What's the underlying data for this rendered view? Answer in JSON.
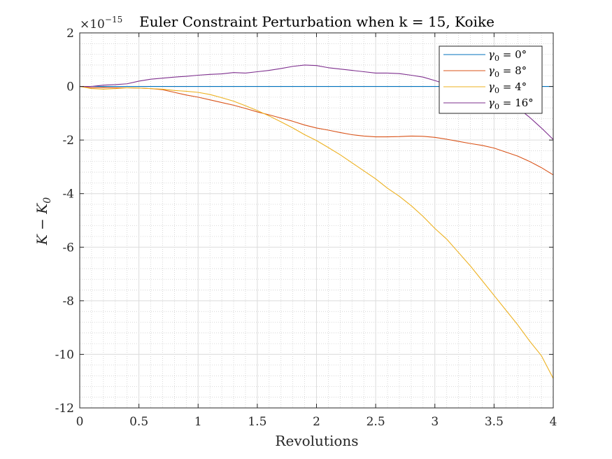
{
  "chart_data": {
    "type": "line",
    "title": "Euler Constraint Perturbation when k = 15, Koike",
    "xlabel": "Revolutions",
    "ylabel": "K − K",
    "ylabel_sub": "0",
    "exponent_base": "×10",
    "exponent_power": "−15",
    "xlim": [
      0,
      4
    ],
    "ylim": [
      -12,
      2
    ],
    "xticks": [
      0,
      0.5,
      1,
      1.5,
      2,
      2.5,
      3,
      3.5,
      4
    ],
    "yticks": [
      2,
      0,
      -2,
      -4,
      -6,
      -8,
      -10,
      -12
    ],
    "xticklabels": [
      "0",
      "0.5",
      "1",
      "1.5",
      "2",
      "2.5",
      "3",
      "3.5",
      "4"
    ],
    "yticklabels": [
      "2",
      "0",
      "-2",
      "-4",
      "-6",
      "-8",
      "-10",
      "-12"
    ],
    "grid": true,
    "minor_grid": true,
    "legend_position": "top-right",
    "series": [
      {
        "name": "γ0 = 0°",
        "label_symbol": "γ",
        "label_sub": "0",
        "label_rest": " = 0°",
        "color": "#0072BD",
        "x": [
          0,
          4
        ],
        "y": [
          0,
          0
        ]
      },
      {
        "name": "γ0 = 8°",
        "label_symbol": "γ",
        "label_sub": "0",
        "label_rest": " = 8°",
        "color": "#D95319",
        "x": [
          0,
          0.1,
          0.2,
          0.3,
          0.4,
          0.5,
          0.6,
          0.7,
          0.8,
          0.9,
          1.0,
          1.1,
          1.2,
          1.3,
          1.4,
          1.5,
          1.6,
          1.7,
          1.8,
          1.9,
          2.0,
          2.1,
          2.2,
          2.3,
          2.4,
          2.5,
          2.6,
          2.7,
          2.8,
          2.9,
          3.0,
          3.1,
          3.2,
          3.3,
          3.4,
          3.5,
          3.6,
          3.7,
          3.8,
          3.9,
          4.0
        ],
        "y": [
          0,
          -0.05,
          -0.04,
          -0.05,
          -0.05,
          -0.06,
          -0.08,
          -0.12,
          -0.22,
          -0.32,
          -0.4,
          -0.5,
          -0.6,
          -0.7,
          -0.82,
          -0.95,
          -1.06,
          -1.18,
          -1.3,
          -1.44,
          -1.55,
          -1.63,
          -1.72,
          -1.8,
          -1.85,
          -1.88,
          -1.88,
          -1.87,
          -1.85,
          -1.86,
          -1.9,
          -1.97,
          -2.05,
          -2.13,
          -2.2,
          -2.3,
          -2.45,
          -2.6,
          -2.8,
          -3.03,
          -3.3
        ]
      },
      {
        "name": "γ0 = 4°",
        "label_symbol": "γ",
        "label_sub": "0",
        "label_rest": " = 4°",
        "color": "#EDB120",
        "x": [
          0,
          0.1,
          0.2,
          0.3,
          0.4,
          0.5,
          0.6,
          0.7,
          0.8,
          0.9,
          1.0,
          1.1,
          1.2,
          1.3,
          1.4,
          1.5,
          1.6,
          1.7,
          1.8,
          1.9,
          2.0,
          2.1,
          2.2,
          2.3,
          2.4,
          2.5,
          2.6,
          2.7,
          2.8,
          2.9,
          3.0,
          3.1,
          3.2,
          3.3,
          3.4,
          3.5,
          3.6,
          3.7,
          3.8,
          3.9,
          4.0
        ],
        "y": [
          0,
          -0.08,
          -0.1,
          -0.08,
          -0.05,
          -0.06,
          -0.08,
          -0.1,
          -0.15,
          -0.18,
          -0.22,
          -0.3,
          -0.42,
          -0.55,
          -0.72,
          -0.9,
          -1.1,
          -1.32,
          -1.55,
          -1.8,
          -2.02,
          -2.28,
          -2.55,
          -2.85,
          -3.15,
          -3.45,
          -3.8,
          -4.1,
          -4.45,
          -4.85,
          -5.3,
          -5.7,
          -6.2,
          -6.7,
          -7.25,
          -7.8,
          -8.35,
          -8.9,
          -9.5,
          -10.05,
          -10.9
        ]
      },
      {
        "name": "γ0 = 16°",
        "label_symbol": "γ",
        "label_sub": "0",
        "label_rest": " = 16°",
        "color": "#7E2F8E",
        "x": [
          0,
          0.1,
          0.2,
          0.3,
          0.4,
          0.5,
          0.6,
          0.7,
          0.8,
          0.9,
          1.0,
          1.1,
          1.2,
          1.3,
          1.4,
          1.5,
          1.6,
          1.7,
          1.8,
          1.9,
          2.0,
          2.1,
          2.2,
          2.3,
          2.4,
          2.5,
          2.6,
          2.7,
          2.8,
          2.9,
          3.0,
          3.1,
          3.2,
          3.3,
          3.4,
          3.5,
          3.6,
          3.7,
          3.8,
          3.9,
          4.0
        ],
        "y": [
          0,
          0.0,
          0.05,
          0.07,
          0.1,
          0.2,
          0.27,
          0.31,
          0.35,
          0.38,
          0.42,
          0.45,
          0.47,
          0.52,
          0.5,
          0.55,
          0.6,
          0.67,
          0.75,
          0.8,
          0.78,
          0.7,
          0.65,
          0.6,
          0.55,
          0.5,
          0.5,
          0.48,
          0.42,
          0.35,
          0.22,
          0.08,
          -0.02,
          -0.05,
          -0.1,
          -0.2,
          -0.38,
          -0.8,
          -1.15,
          -1.55,
          -1.98
        ]
      }
    ]
  }
}
